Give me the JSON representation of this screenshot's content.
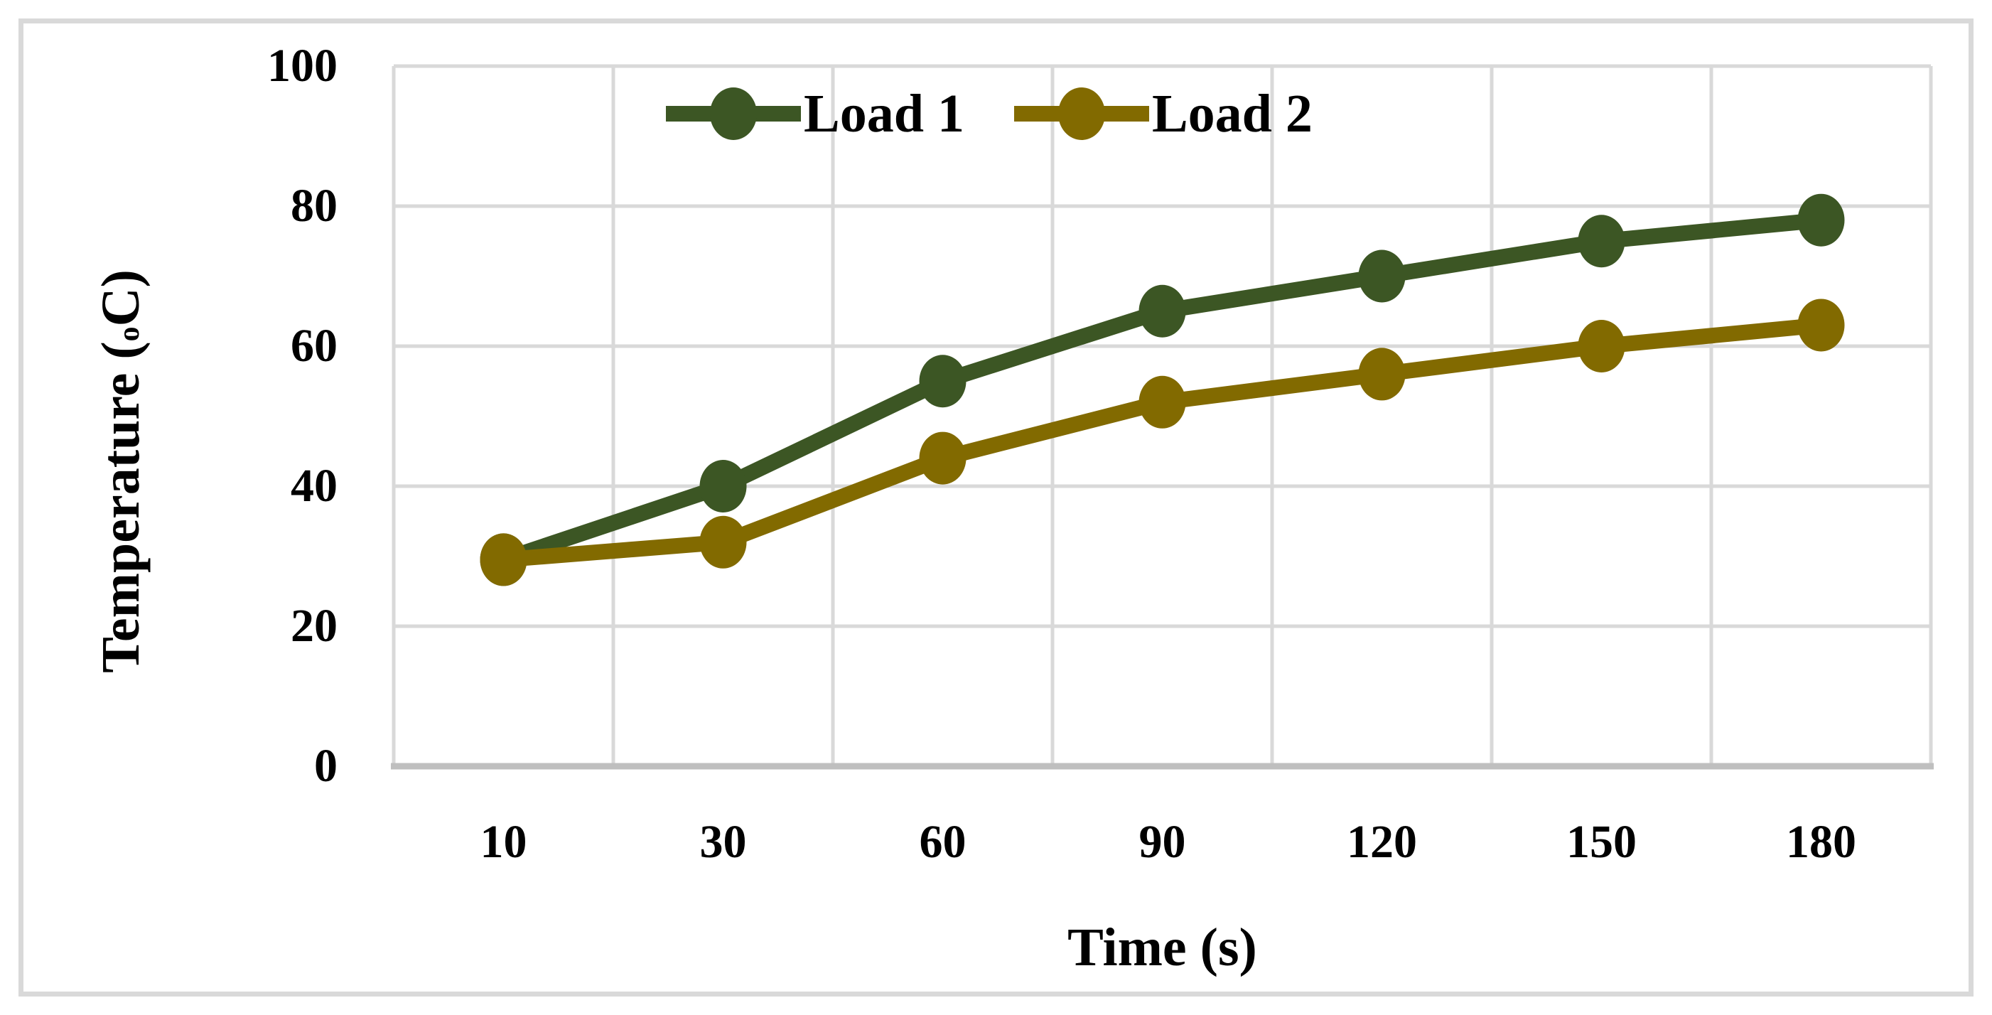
{
  "figure": {
    "background_color": "#FFFFFF",
    "border_color": "#D9D9D9"
  },
  "chart_data": {
    "type": "line",
    "categories": [
      "10",
      "30",
      "60",
      "90",
      "120",
      "150",
      "180"
    ],
    "series": [
      {
        "name": "Load 1",
        "color": "#3C5624",
        "values": [
          29.5,
          40,
          55,
          65,
          70,
          75,
          78
        ]
      },
      {
        "name": "Load 2",
        "color": "#826A00",
        "values": [
          29.5,
          32,
          44,
          52,
          56,
          60,
          63
        ]
      }
    ],
    "title": "",
    "xlabel": "Time (s)",
    "ylabel": "Temperature (oC)",
    "ylabel_parts": {
      "pre": "Temperature (",
      "sup": "o",
      "post": "C)"
    },
    "ylim": [
      0,
      100
    ],
    "yticks": [
      0,
      20,
      40,
      60,
      80,
      100
    ],
    "grid": true,
    "gridline_color": "#D9D9D9",
    "axisline_color": "#BFBFBF",
    "legend_position": "top-center",
    "marker_shape": "circle"
  }
}
